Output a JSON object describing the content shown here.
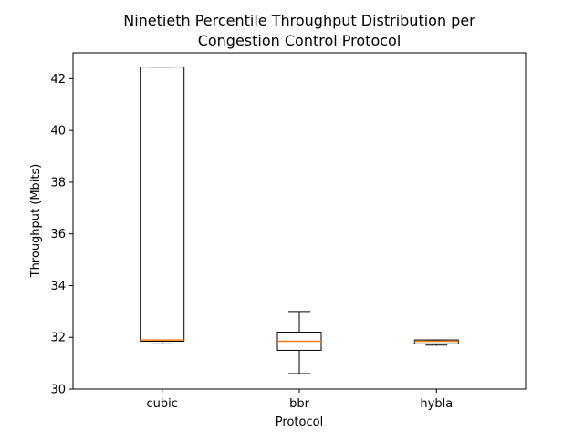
{
  "chart_data": {
    "type": "box",
    "title_lines": [
      "Ninetieth Percentile Throughput Distribution per",
      "Congestion Control Protocol"
    ],
    "xlabel": "Protocol",
    "ylabel": "Throughput (Mbits)",
    "ylim": [
      30,
      43
    ],
    "yticks": [
      30,
      32,
      34,
      36,
      38,
      40,
      42
    ],
    "categories": [
      "cubic",
      "bbr",
      "hybla"
    ],
    "boxes": [
      {
        "label": "cubic",
        "whislo": 31.75,
        "q1": 31.85,
        "med": 31.9,
        "q3": 42.45,
        "whishi": 42.45
      },
      {
        "label": "bbr",
        "whislo": 30.6,
        "q1": 31.5,
        "med": 31.85,
        "q3": 32.2,
        "whishi": 33.0
      },
      {
        "label": "hybla",
        "whislo": 31.7,
        "q1": 31.75,
        "med": 31.85,
        "q3": 31.9,
        "whishi": 31.9
      }
    ],
    "grid": false,
    "colors": {
      "box": "#000000",
      "median": "#ff7f0e",
      "background": "#ffffff"
    }
  }
}
